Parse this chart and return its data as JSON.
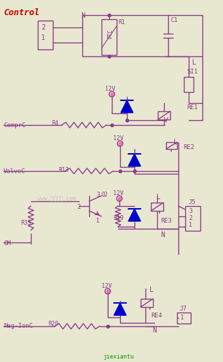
{
  "bg_color": "#e8e8d0",
  "line_color": "#8B3A8B",
  "label_color": "#8B3A8B",
  "title": "Control",
  "title_color": "#cc0000",
  "diode_color": "#0000cc",
  "n_label": "N",
  "l_label": "L",
  "watermark": "www.搜电路图.com",
  "watermark_color": "#999999",
  "bottom_text": "jiexiantu",
  "bottom_color": "#009900"
}
